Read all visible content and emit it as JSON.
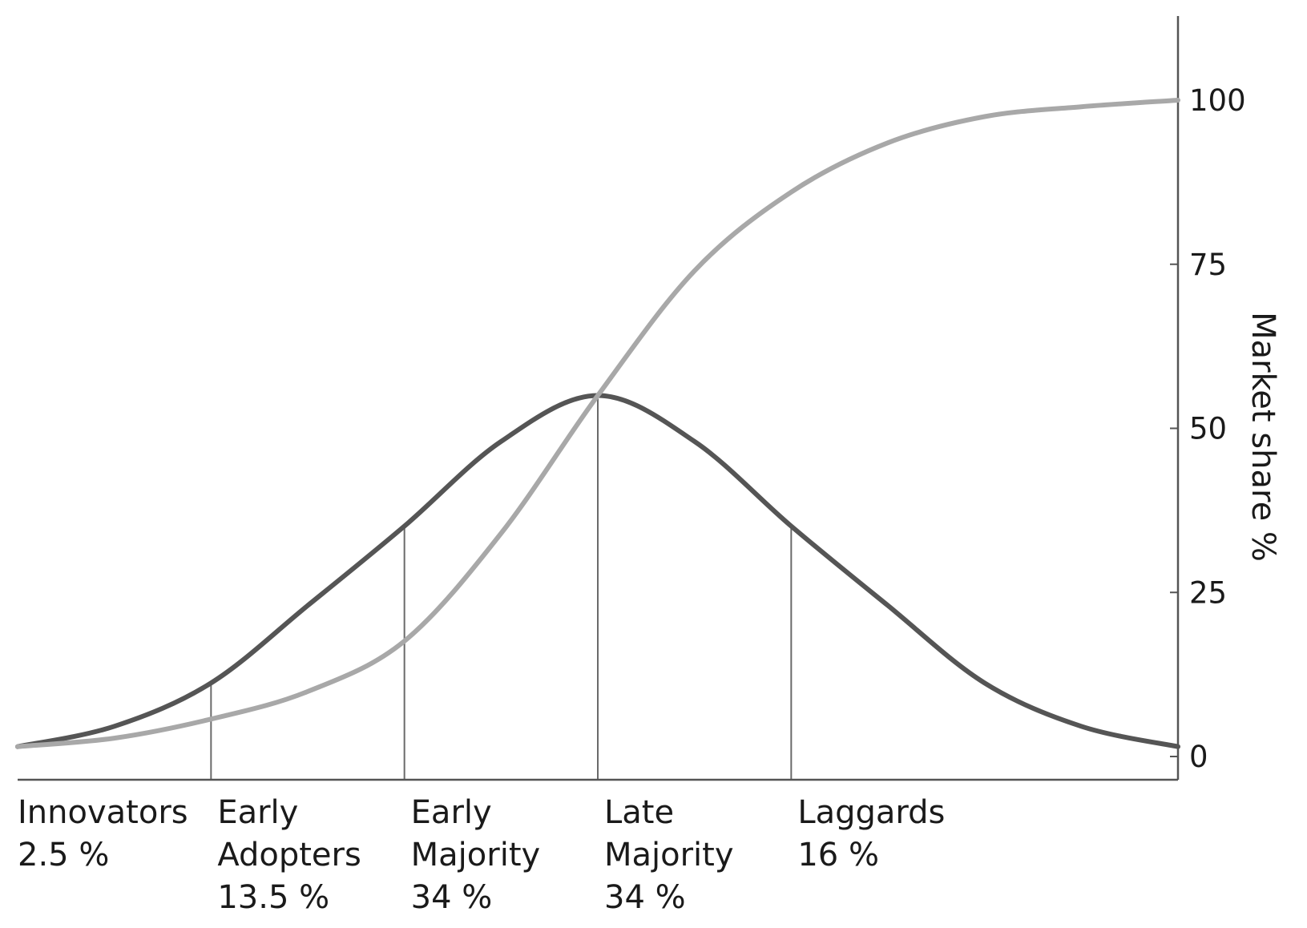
{
  "chart_data": {
    "type": "line",
    "x_range": [
      -3,
      3
    ],
    "y_label": "Market share %",
    "y_ticks": [
      "0",
      "25",
      "50",
      "75",
      "100"
    ],
    "ylim": [
      0,
      100
    ],
    "grid": false,
    "series": [
      {
        "kind": "adoption-bell",
        "color": "#555555",
        "x": [
          -3,
          -2.5,
          -2,
          -1.5,
          -1,
          -0.5,
          0,
          0.5,
          1,
          1.5,
          2,
          2.5,
          3
        ],
        "y": [
          1.5,
          4.6,
          11.2,
          23.0,
          35.1,
          48.0,
          55.0,
          48.0,
          35.1,
          23.0,
          11.2,
          4.6,
          1.5
        ]
      },
      {
        "kind": "cumulative-s-curve",
        "color": "#a8a8a8",
        "x": [
          -3,
          -2.5,
          -2,
          -1.5,
          -1,
          -0.5,
          0,
          0.5,
          1,
          1.5,
          2,
          2.5,
          3
        ],
        "y": [
          1.5,
          2.8,
          5.7,
          9.9,
          17.6,
          34.0,
          55.0,
          74.0,
          86.0,
          93.5,
          97.5,
          99.0,
          100.0
        ]
      }
    ],
    "boundaries": [
      {
        "x": -2,
        "y": 11.2
      },
      {
        "x": -1,
        "y": 35.1
      },
      {
        "x": 0,
        "y": 55.0
      },
      {
        "x": 1,
        "y": 35.1
      }
    ],
    "segments": [
      {
        "lines": [
          "Innovators",
          "2.5 %"
        ],
        "x_start": -3
      },
      {
        "lines": [
          "Early",
          "Adopters",
          "13.5 %"
        ],
        "x_start": -2
      },
      {
        "lines": [
          "Early",
          "Majority",
          "34 %"
        ],
        "x_start": -1
      },
      {
        "lines": [
          "Late",
          "Majority",
          "34 %"
        ],
        "x_start": 0
      },
      {
        "lines": [
          "Laggards",
          "16 %"
        ],
        "x_start": 1
      }
    ]
  }
}
